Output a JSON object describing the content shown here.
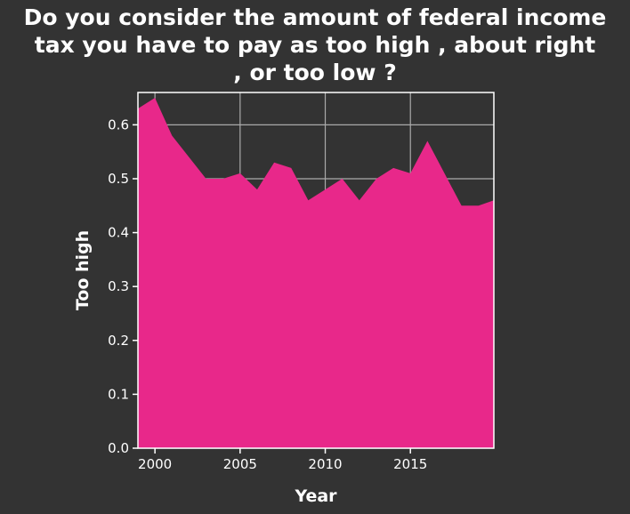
{
  "chart_data": {
    "type": "area",
    "title_lines": [
      "Do you consider the amount of federal income",
      "tax you have to pay as too high , about right",
      ", or too low ?"
    ],
    "xlabel": "Year",
    "ylabel": "Too high",
    "xlim": [
      1999,
      2019.9
    ],
    "ylim": [
      0,
      0.66
    ],
    "xticks": [
      2000,
      2005,
      2010,
      2015
    ],
    "yticks": [
      0.0,
      0.1,
      0.2,
      0.3,
      0.4,
      0.5,
      0.6
    ],
    "ytick_labels": [
      "0.0",
      "0.1",
      "0.2",
      "0.3",
      "0.4",
      "0.5",
      "0.6"
    ],
    "grid": true,
    "series": [
      {
        "x": [
          1999,
          2000,
          2001,
          2003,
          2004,
          2005,
          2006,
          2007,
          2008,
          2009,
          2010,
          2011,
          2012,
          2013,
          2014,
          2015,
          2016,
          2017,
          2018,
          2019,
          2019.9
        ],
        "values": [
          0.63,
          0.65,
          0.58,
          0.5,
          0.5,
          0.51,
          0.48,
          0.53,
          0.52,
          0.46,
          0.48,
          0.5,
          0.46,
          0.5,
          0.52,
          0.51,
          0.57,
          0.51,
          0.45,
          0.45,
          0.46
        ],
        "color": "#e8288a"
      }
    ],
    "colors": {
      "background": "#333333",
      "axis": "#ffffff",
      "grid": "#aaaaaa",
      "text": "#ffffff"
    }
  }
}
